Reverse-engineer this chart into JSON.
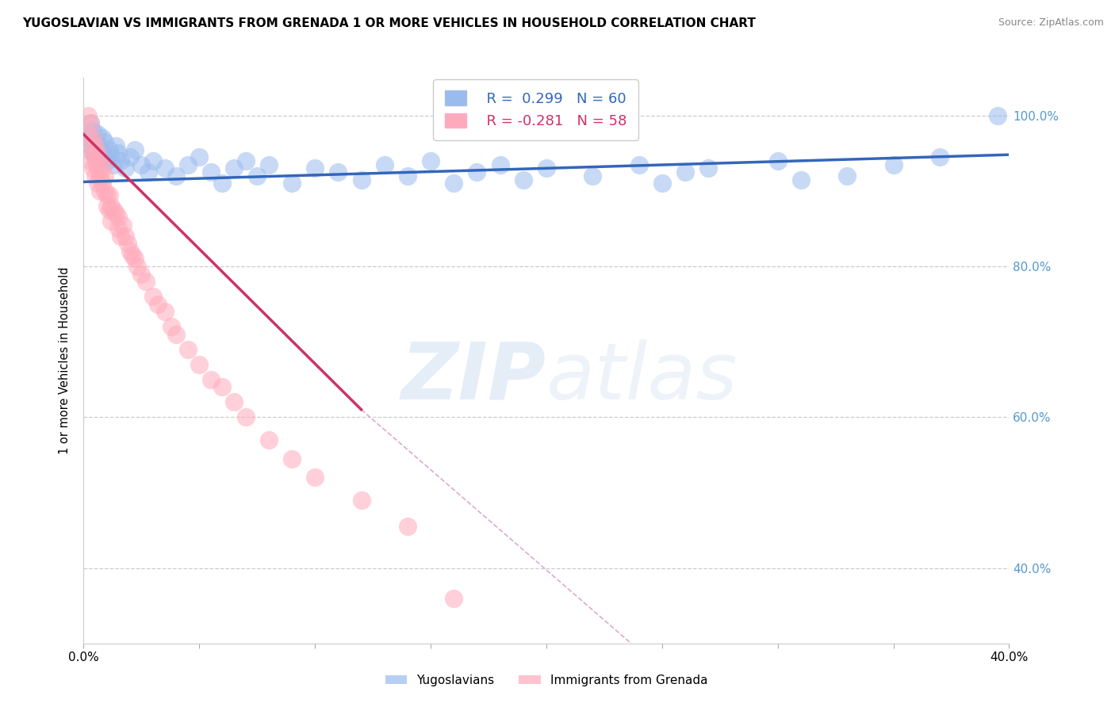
{
  "title": "YUGOSLAVIAN VS IMMIGRANTS FROM GRENADA 1 OR MORE VEHICLES IN HOUSEHOLD CORRELATION CHART",
  "source": "Source: ZipAtlas.com",
  "ylabel": "1 or more Vehicles in Household",
  "legend_label_blue": "Yugoslavians",
  "legend_label_pink": "Immigrants from Grenada",
  "blue_fill": "#99BBEE",
  "blue_edge": "#6699CC",
  "pink_fill": "#FFAABB",
  "pink_edge": "#FF8899",
  "blue_line_color": "#3366BB",
  "pink_line_color": "#CC3366",
  "pink_dash_color": "#DDAACC",
  "watermark_color": "#CCDDF0",
  "xlim": [
    0.0,
    0.4
  ],
  "ylim": [
    0.3,
    1.05
  ],
  "xticks": [
    0.0,
    0.05,
    0.1,
    0.15,
    0.2,
    0.25,
    0.3,
    0.35,
    0.4
  ],
  "yticks": [
    0.4,
    0.6,
    0.8,
    1.0
  ],
  "blue_R": 0.299,
  "blue_N": 60,
  "pink_R": -0.281,
  "pink_N": 58,
  "blue_line": [
    0.0,
    0.4,
    0.912,
    0.948
  ],
  "pink_line_solid": [
    0.0,
    0.12,
    0.975,
    0.61
  ],
  "pink_line_dash": [
    0.12,
    0.5,
    0.61,
    -0.4
  ],
  "blue_x": [
    0.002,
    0.003,
    0.003,
    0.004,
    0.004,
    0.005,
    0.005,
    0.006,
    0.006,
    0.007,
    0.007,
    0.008,
    0.008,
    0.009,
    0.01,
    0.011,
    0.012,
    0.013,
    0.014,
    0.015,
    0.016,
    0.018,
    0.02,
    0.022,
    0.025,
    0.028,
    0.03,
    0.035,
    0.04,
    0.045,
    0.05,
    0.055,
    0.06,
    0.065,
    0.07,
    0.075,
    0.08,
    0.09,
    0.1,
    0.11,
    0.12,
    0.13,
    0.14,
    0.15,
    0.16,
    0.17,
    0.18,
    0.19,
    0.2,
    0.22,
    0.24,
    0.25,
    0.26,
    0.27,
    0.3,
    0.31,
    0.33,
    0.35,
    0.37,
    0.395
  ],
  "blue_y": [
    0.97,
    0.96,
    0.99,
    0.95,
    0.98,
    0.965,
    0.945,
    0.975,
    0.955,
    0.96,
    0.94,
    0.97,
    0.95,
    0.965,
    0.94,
    0.955,
    0.945,
    0.935,
    0.96,
    0.95,
    0.94,
    0.93,
    0.945,
    0.955,
    0.935,
    0.925,
    0.94,
    0.93,
    0.92,
    0.935,
    0.945,
    0.925,
    0.91,
    0.93,
    0.94,
    0.92,
    0.935,
    0.91,
    0.93,
    0.925,
    0.915,
    0.935,
    0.92,
    0.94,
    0.91,
    0.925,
    0.935,
    0.915,
    0.93,
    0.92,
    0.935,
    0.91,
    0.925,
    0.93,
    0.94,
    0.915,
    0.92,
    0.935,
    0.945,
    1.0
  ],
  "pink_x": [
    0.002,
    0.002,
    0.003,
    0.003,
    0.003,
    0.004,
    0.004,
    0.004,
    0.005,
    0.005,
    0.005,
    0.006,
    0.006,
    0.006,
    0.007,
    0.007,
    0.007,
    0.008,
    0.008,
    0.009,
    0.009,
    0.01,
    0.01,
    0.011,
    0.011,
    0.012,
    0.012,
    0.013,
    0.014,
    0.015,
    0.015,
    0.016,
    0.017,
    0.018,
    0.019,
    0.02,
    0.021,
    0.022,
    0.023,
    0.025,
    0.027,
    0.03,
    0.032,
    0.035,
    0.038,
    0.04,
    0.045,
    0.05,
    0.055,
    0.06,
    0.065,
    0.07,
    0.08,
    0.09,
    0.1,
    0.12,
    0.14,
    0.16
  ],
  "pink_y": [
    1.0,
    0.975,
    0.99,
    0.96,
    0.94,
    0.97,
    0.95,
    0.93,
    0.96,
    0.94,
    0.92,
    0.95,
    0.93,
    0.91,
    0.94,
    0.92,
    0.9,
    0.93,
    0.91,
    0.92,
    0.9,
    0.895,
    0.88,
    0.895,
    0.875,
    0.88,
    0.86,
    0.875,
    0.87,
    0.865,
    0.85,
    0.84,
    0.855,
    0.84,
    0.83,
    0.82,
    0.815,
    0.81,
    0.8,
    0.79,
    0.78,
    0.76,
    0.75,
    0.74,
    0.72,
    0.71,
    0.69,
    0.67,
    0.65,
    0.64,
    0.62,
    0.6,
    0.57,
    0.545,
    0.52,
    0.49,
    0.455,
    0.36
  ]
}
